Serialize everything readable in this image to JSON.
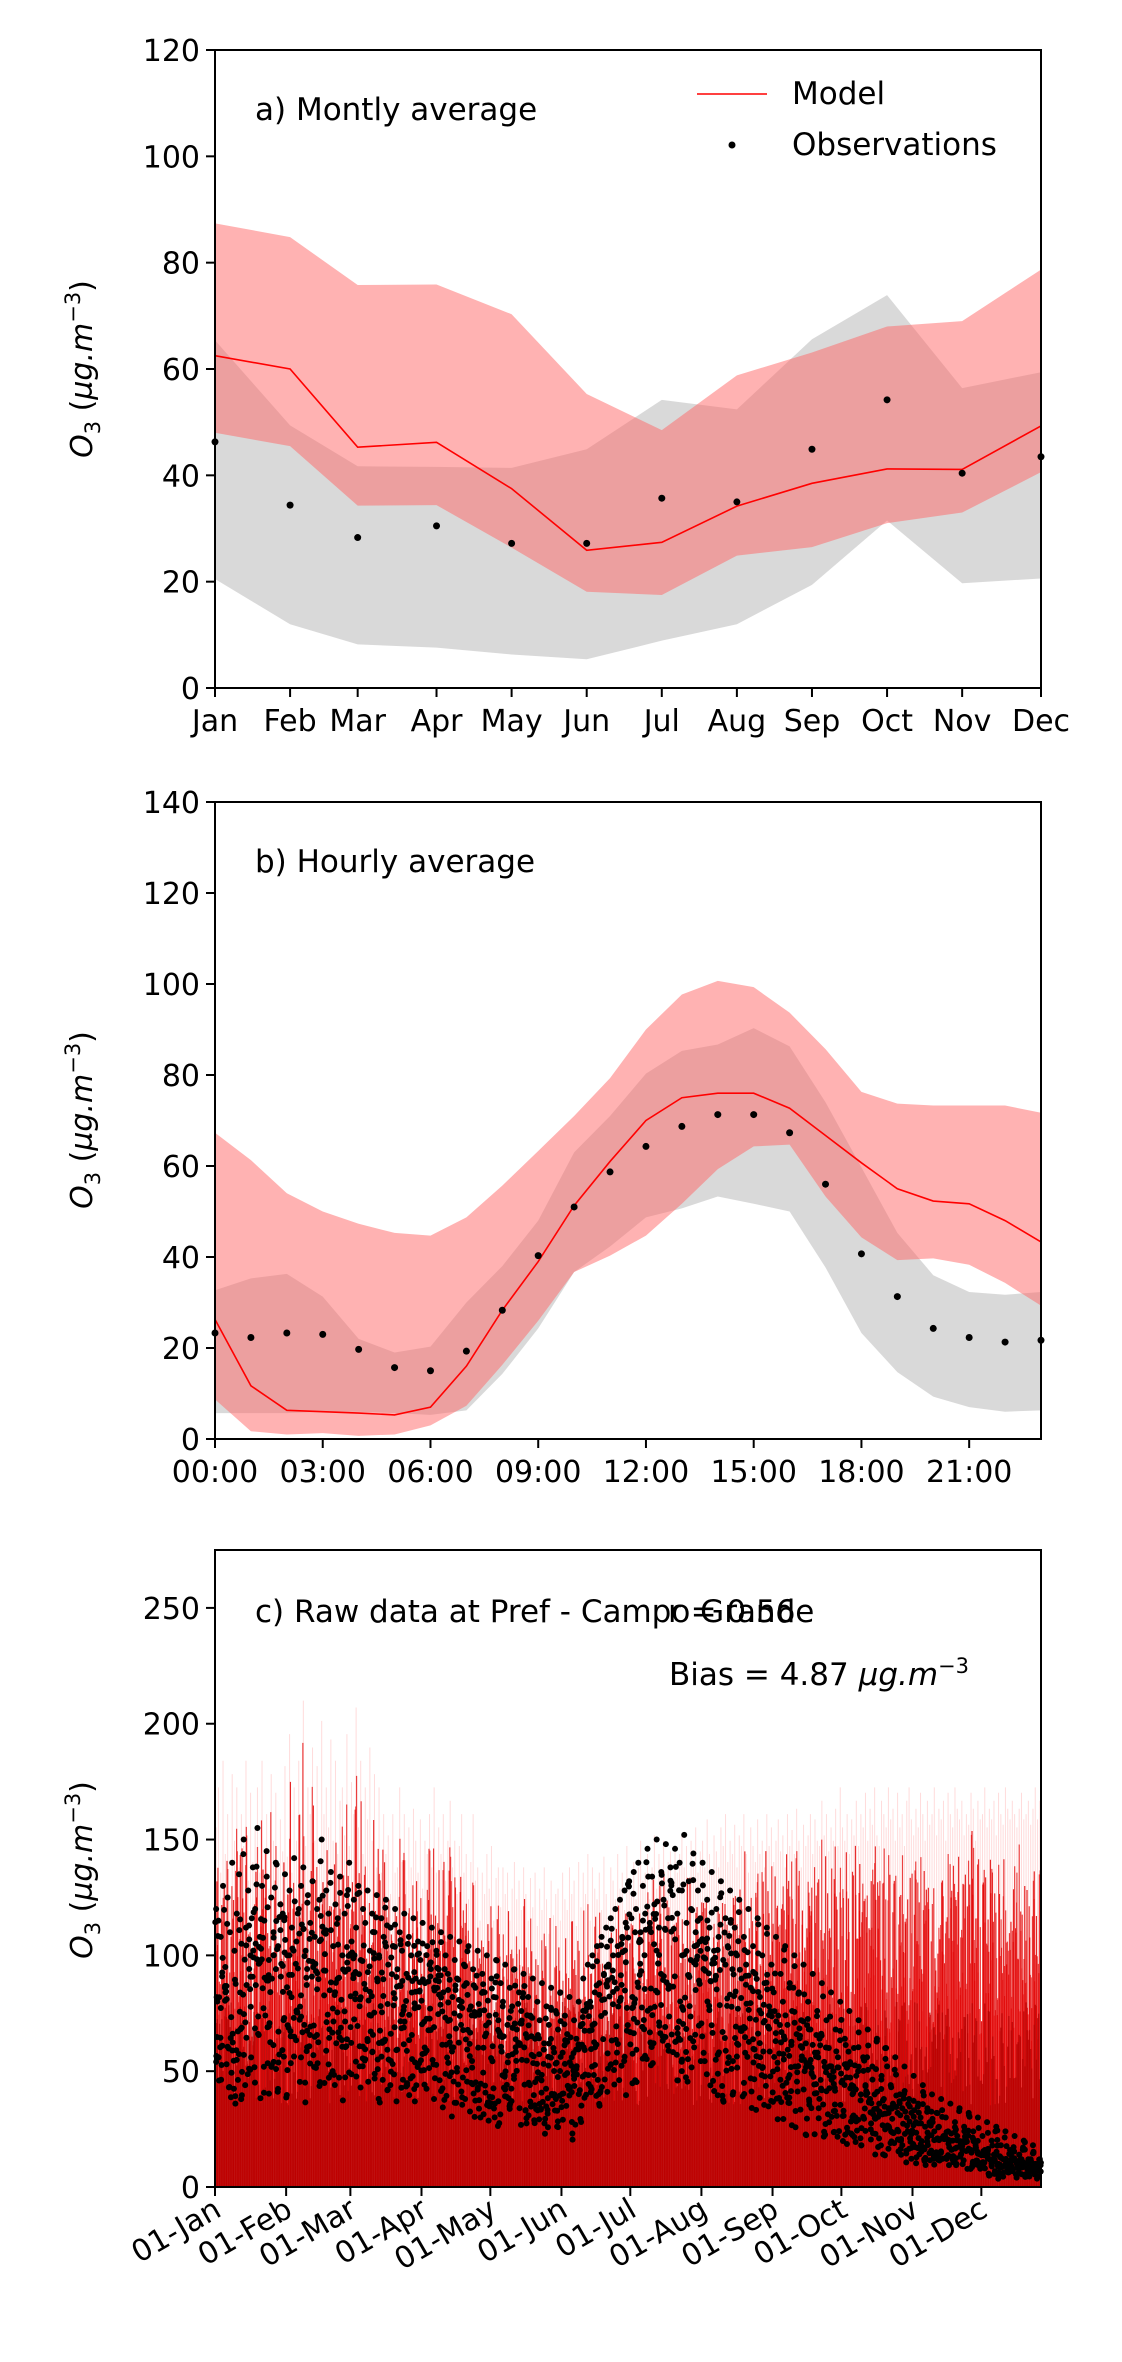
{
  "chart_data": [
    {
      "type": "line",
      "panel_label": "a) Montly average",
      "ylabel": "O3 (µg.m−3)",
      "ylim": [
        0,
        120
      ],
      "yticks": [
        0,
        20,
        40,
        60,
        80,
        100,
        120
      ],
      "categories": [
        "Jan",
        "Feb",
        "Mar",
        "Apr",
        "May",
        "Jun",
        "Jul",
        "Aug",
        "Sep",
        "Oct",
        "Nov",
        "Dec"
      ],
      "x_positions": [
        0,
        1,
        1.9,
        2.95,
        3.95,
        4.95,
        5.95,
        6.95,
        7.95,
        8.95,
        9.95,
        11
      ],
      "legend": {
        "placement": "top-right",
        "entries": [
          "Model",
          "Observations"
        ]
      },
      "series": [
        {
          "name": "Model",
          "kind": "line",
          "color": "#ff0000",
          "values": [
            62.5,
            60.0,
            45.3,
            46.2,
            37.5,
            25.9,
            27.4,
            34.2,
            38.5,
            41.2,
            41.1,
            49.3
          ]
        },
        {
          "name": "Observations",
          "kind": "scatter",
          "color": "#000000",
          "values": [
            46.3,
            34.4,
            28.3,
            30.5,
            27.2,
            27.2,
            35.7,
            35.0,
            44.9,
            54.2,
            40.4,
            43.5
          ]
        },
        {
          "name": "Model range",
          "kind": "band",
          "color": "#ff6666",
          "lower": [
            48.0,
            45.5,
            34.3,
            34.4,
            26.4,
            18.1,
            17.5,
            24.9,
            26.5,
            31.0,
            33.0,
            40.6
          ],
          "upper": [
            87.4,
            84.8,
            75.8,
            75.9,
            70.3,
            55.3,
            48.5,
            58.8,
            63.1,
            68.0,
            69.0,
            78.7
          ]
        },
        {
          "name": "Observations range",
          "kind": "band",
          "color": "#aaaaaa",
          "lower": [
            20.5,
            12.0,
            8.2,
            7.6,
            6.3,
            5.4,
            8.9,
            12.0,
            19.4,
            31.5,
            19.7,
            20.6
          ],
          "upper": [
            65.4,
            49.4,
            41.7,
            41.6,
            41.4,
            44.9,
            54.2,
            52.4,
            65.6,
            73.9,
            56.4,
            59.4
          ]
        }
      ]
    },
    {
      "type": "line",
      "panel_label": "b) Hourly average",
      "ylabel": "O3 (µg.m−3)",
      "ylim": [
        0,
        140
      ],
      "yticks": [
        0,
        20,
        40,
        60,
        80,
        100,
        120,
        140
      ],
      "x": [
        0,
        1,
        2,
        3,
        4,
        5,
        6,
        7,
        8,
        9,
        10,
        11,
        12,
        13,
        14,
        15,
        16,
        17,
        18,
        19,
        20,
        21,
        22,
        23
      ],
      "xticks": [
        0,
        3,
        6,
        9,
        12,
        15,
        18,
        21
      ],
      "xticklabels": [
        "00:00",
        "03:00",
        "06:00",
        "09:00",
        "12:00",
        "15:00",
        "18:00",
        "21:00"
      ],
      "series": [
        {
          "name": "Model",
          "kind": "line",
          "color": "#ff0000",
          "values": [
            26.3,
            11.7,
            6.3,
            6.0,
            5.7,
            5.3,
            7.0,
            16.0,
            28.3,
            39.0,
            51.3,
            61.0,
            70.0,
            75.0,
            76.0,
            76.0,
            72.7,
            66.7,
            60.7,
            55.0,
            52.3,
            51.7,
            48.0,
            43.3
          ]
        },
        {
          "name": "Observations",
          "kind": "scatter",
          "color": "#000000",
          "values": [
            23.3,
            22.3,
            23.3,
            23.0,
            19.7,
            15.7,
            15.0,
            19.3,
            28.3,
            40.3,
            51.0,
            58.7,
            64.3,
            68.7,
            71.3,
            71.3,
            67.3,
            56.0,
            40.7,
            31.3,
            24.3,
            22.3,
            21.3,
            21.7
          ]
        },
        {
          "name": "Model range",
          "kind": "band",
          "color": "#ff6666",
          "lower": [
            8.7,
            1.7,
            1.0,
            1.3,
            0.7,
            1.0,
            3.0,
            7.3,
            16.3,
            26.0,
            36.7,
            40.3,
            44.7,
            51.7,
            59.3,
            64.3,
            64.7,
            53.3,
            44.3,
            39.3,
            39.7,
            38.3,
            34.3,
            29.3
          ]
        },
        {
          "name": "Observations range",
          "kind": "band",
          "color": "#aaaaaa",
          "lower": [
            5.7,
            5.7,
            5.7,
            6.0,
            6.0,
            5.7,
            5.3,
            6.3,
            14.3,
            24.3,
            36.7,
            42.3,
            48.7,
            50.7,
            53.3,
            51.7,
            50.0,
            37.7,
            23.3,
            14.7,
            9.3,
            7.0,
            6.0,
            6.3
          ],
          "upper": [
            32.7,
            35.3,
            36.3,
            31.3,
            22.0,
            19.0,
            20.3,
            30.0,
            38.0,
            48.0,
            63.0,
            71.0,
            80.3,
            85.3,
            86.7,
            90.3,
            86.3,
            74.0,
            59.7,
            45.3,
            36.0,
            32.3,
            31.7,
            32.3
          ]
        }
      ]
    },
    {
      "type": "line",
      "panel_label": "c) Raw data at Pref - Campo Grande",
      "annotations": {
        "r": "r = 0.56",
        "bias": "Bias = 4.87 µg.m−3"
      },
      "ylabel": "O3 (µg.m−3)",
      "ylim": [
        0,
        275
      ],
      "yticks": [
        0,
        50,
        100,
        150,
        200,
        250
      ],
      "xlim": [
        0,
        360
      ],
      "xticks": [
        0,
        31,
        59,
        90,
        120,
        151,
        181,
        212,
        243,
        273,
        304,
        334
      ],
      "xticklabels": [
        "01-Jan",
        "01-Feb",
        "01-Mar",
        "01-Apr",
        "01-May",
        "01-Jun",
        "01-Jul",
        "01-Aug",
        "01-Sep",
        "01-Oct",
        "01-Nov",
        "01-Dec"
      ],
      "series": [
        {
          "name": "Model",
          "kind": "line",
          "color": "#ff0000",
          "daily_peaks": [
            135,
            150,
            118,
            160,
            125,
            140,
            110,
            155,
            130,
            150,
            120,
            140,
            128,
            160,
            115,
            148,
            122,
            135,
            150,
            118,
            160,
            125,
            140,
            112,
            155,
            130,
            148,
            120,
            138,
            126,
            158,
            124,
            170,
            118,
            150,
            130,
            160,
            120,
            185,
            128,
            150,
            140,
            165,
            130,
            158,
            122,
            175,
            140,
            150,
            135,
            168,
            130,
            160,
            125,
            145,
            150,
            132,
            170,
            128,
            152,
            140,
            180,
            135,
            160,
            125,
            150,
            138,
            165,
            130,
            155,
            120,
            150,
            118,
            140,
            125,
            132,
            110,
            140,
            118,
            120,
            150,
            122,
            140,
            115,
            135,
            120,
            142,
            130,
            118,
            138,
            112,
            130,
            125,
            140,
            120,
            150,
            118,
            135,
            125,
            140,
            115,
            130,
            145,
            120,
            130,
            110,
            128,
            140,
            118,
            125,
            108,
            122,
            140,
            115,
            120,
            100,
            118,
            110,
            125,
            112,
            128,
            100,
            116,
            120,
            105,
            120,
            110,
            118,
            100,
            112,
            122,
            108,
            115,
            104,
            120,
            110,
            100,
            116,
            105,
            118,
            98,
            112,
            104,
            120,
            108,
            95,
            115,
            102,
            110,
            112,
            100,
            118,
            108,
            104,
            120,
            110,
            115,
            98,
            122,
            105,
            118,
            110,
            125,
            100,
            120,
            112,
            108,
            118,
            104,
            124,
            110,
            100,
            120,
            115,
            108,
            125,
            112,
            118,
            104,
            128,
            115,
            110,
            122,
            108,
            120,
            130,
            115,
            118,
            125,
            108,
            120,
            132,
            112,
            125,
            118,
            130,
            115,
            122,
            126,
            110,
            128,
            118,
            125,
            132,
            120,
            128,
            115,
            130,
            122,
            135,
            118,
            126,
            130,
            120,
            138,
            125,
            118,
            132,
            126,
            120,
            135,
            128,
            140,
            122,
            130,
            125,
            136,
            120,
            132,
            128,
            140,
            125,
            118,
            135,
            128,
            122,
            138,
            125,
            130,
            120,
            140,
            128,
            135,
            122,
            130,
            138,
            126,
            132,
            120,
            140,
            128,
            134,
            125,
            142,
            130,
            120,
            136,
            128,
            132,
            140,
            125,
            138,
            130,
            128,
            145,
            132,
            140,
            126,
            135,
            130,
            142,
            128,
            150,
            135,
            130,
            140,
            125,
            138,
            132,
            145,
            128,
            140,
            135,
            148,
            130,
            142,
            136,
            150,
            132,
            128,
            145,
            140,
            135,
            150,
            138,
            142,
            130,
            148,
            135,
            140,
            128,
            145,
            150,
            138,
            132,
            142,
            135,
            148,
            140,
            130,
            145,
            136,
            140,
            150,
            132,
            142,
            138,
            145,
            130,
            148,
            140,
            135,
            150,
            142,
            138,
            145,
            132,
            140,
            136,
            148,
            142,
            130,
            145,
            138,
            140,
            150,
            135,
            142,
            138,
            145,
            132,
            148,
            140,
            136,
            150,
            142,
            138,
            145,
            140,
            135,
            142,
            148,
            138,
            140,
            145,
            136,
            142,
            150,
            138,
            145,
            140,
            132,
            148,
            142,
            138,
            145,
            140,
            136,
            150,
            142,
            145
          ]
        },
        {
          "name": "Observations",
          "kind": "scatter",
          "color": "#000000",
          "daily_max": [
            120,
            115,
            108,
            130,
            95,
            125,
            110,
            140,
            102,
            118,
            135,
            105,
            150,
            112,
            128,
            100,
            138,
            120,
            155,
            108,
            130,
            115,
            145,
            98,
            125,
            110,
            140,
            104,
            122,
            118,
            135,
            100,
            128,
            112,
            142,
            106,
            120,
            130,
            138,
            102,
            126,
            114,
            132,
            108,
            120,
            124,
            150,
            110,
            128,
            118,
            136,
            104,
            122,
            116,
            134,
            100,
            118,
            126,
            140,
            106,
            124,
            112,
            130,
            98,
            120,
            114,
            128,
            102,
            118,
            110,
            126,
            100,
            116,
            108,
            124,
            96,
            112,
            104,
            120,
            94,
            110,
            102,
            118,
            92,
            108,
            100,
            116,
            90,
            106,
            98,
            114,
            88,
            104,
            96,
            112,
            86,
            102,
            94,
            110,
            84,
            100,
            92,
            108,
            82,
            98,
            90,
            106,
            80,
            96,
            88,
            104,
            78,
            94,
            86,
            102,
            76,
            92,
            84,
            100,
            74,
            90,
            82,
            98,
            72,
            88,
            80,
            96,
            70,
            86,
            78,
            94,
            68,
            84,
            76,
            92,
            66,
            82,
            74,
            90,
            64,
            80,
            72,
            88,
            62,
            78,
            70,
            86,
            60,
            76,
            68,
            84,
            58,
            74,
            66,
            82,
            56,
            72,
            64,
            80,
            70,
            90,
            76,
            96,
            80,
            100,
            84,
            104,
            88,
            108,
            92,
            112,
            96,
            116,
            100,
            120,
            104,
            124,
            108,
            128,
            112,
            132,
            116,
            136,
            120,
            140,
            110,
            130,
            118,
            146,
            114,
            134,
            122,
            150,
            112,
            136,
            124,
            148,
            116,
            138,
            126,
            146,
            118,
            140,
            128,
            152,
            114,
            132,
            120,
            144,
            110,
            128,
            116,
            140,
            106,
            124,
            112,
            136,
            102,
            120,
            108,
            132,
            98,
            116,
            104,
            128,
            94,
            112,
            100,
            124,
            90,
            108,
            96,
            120,
            86,
            104,
            92,
            116,
            82,
            100,
            88,
            112,
            78,
            96,
            84,
            108,
            74,
            92,
            80,
            104,
            70,
            88,
            76,
            100,
            66,
            84,
            72,
            96,
            62,
            80,
            68,
            92,
            58,
            76,
            64,
            88,
            54,
            72,
            60,
            84,
            50,
            68,
            56,
            80,
            46,
            64,
            52,
            76,
            44,
            60,
            48,
            72,
            40,
            56,
            44,
            68,
            38,
            52,
            40,
            64,
            36,
            48,
            38,
            60,
            34,
            44,
            36,
            56,
            32,
            40,
            34,
            52,
            30,
            38,
            32,
            48,
            28,
            36,
            30,
            44,
            26,
            34,
            28,
            40,
            24,
            32,
            26,
            38,
            22,
            30,
            24,
            36,
            20,
            28,
            22,
            34,
            18,
            26,
            20,
            32,
            16,
            24,
            18,
            30,
            14,
            22,
            16,
            28,
            12,
            20,
            14,
            26,
            10,
            18,
            12,
            24,
            10,
            16,
            12,
            22,
            10,
            14,
            12,
            20,
            10,
            12,
            12,
            18,
            10,
            10,
            12,
            16
          ]
        }
      ]
    }
  ]
}
